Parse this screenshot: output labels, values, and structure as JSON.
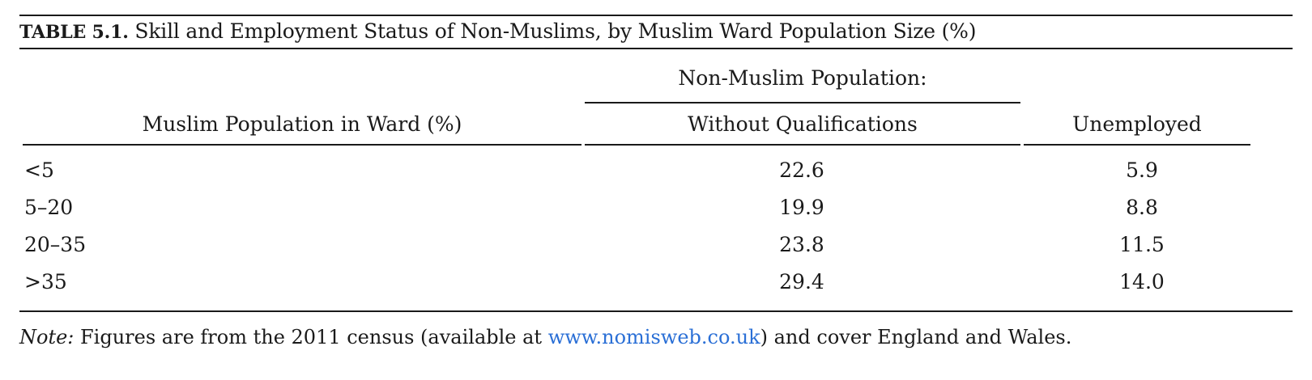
{
  "table": {
    "caption_label": "TABLE 5.1.",
    "caption_title": "Skill and Employment Status of Non-Muslims, by Muslim Ward Population Size (%)",
    "group_header": "Non-Muslim Population:",
    "columns": [
      "Muslim Population in Ward (%)",
      "Without Qualifications",
      "Unemployed"
    ],
    "rows": [
      [
        "<5",
        "22.6",
        "5.9"
      ],
      [
        "5–20",
        "19.9",
        "8.8"
      ],
      [
        "20–35",
        "23.8",
        "11.5"
      ],
      [
        ">35",
        "29.4",
        "14.0"
      ]
    ]
  },
  "note": {
    "label": "Note:",
    "text_before": " Figures are from the 2011 census (available at ",
    "link": "www.nomisweb.co.uk",
    "text_after": ") and cover England and Wales."
  },
  "colors": {
    "link": "#2a6fd6",
    "rule": "#1a1a1a"
  }
}
